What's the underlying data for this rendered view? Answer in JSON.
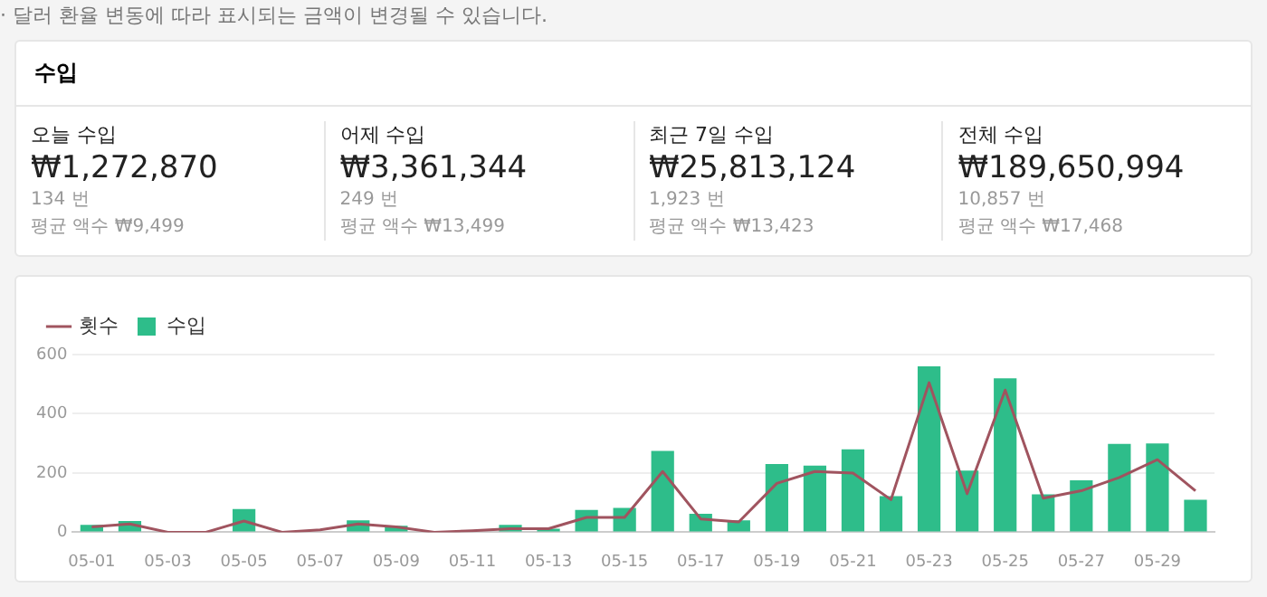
{
  "chart_data": [
    {
      "type": "other",
      "subtitle": "· 달러 환율 변동에 따라 표시되는 금액이 변경될 수 있습니다.",
      "title": "수입",
      "annotations": [
        "오늘 수입",
        "₩1,272,870",
        "134 번",
        "평균 액수 ₩9,499",
        "어제 수입",
        "₩3,361,344",
        "249 번",
        "평균 액수 ₩13,499",
        "최근 7일 수입",
        "₩25,813,124",
        "1,923 번",
        "평균 액수 ₩13,423",
        "전체 수입",
        "₩189,650,994",
        "10,857 번",
        "평균 액수 ₩17,468"
      ]
    },
    {
      "type": "bar",
      "categories": [
        "05-01",
        null,
        "05-03",
        null,
        "05-05",
        null,
        "05-07",
        null,
        "05-09",
        null,
        "05-11",
        null,
        "05-13",
        null,
        "05-15",
        null,
        "05-17",
        null,
        "05-19",
        null,
        "05-21",
        null,
        "05-23",
        null,
        "05-25",
        null,
        "05-27",
        null,
        "05-29",
        null
      ],
      "series": [
        {
          "name": "횟수",
          "type": "line",
          "color": "#a0545f",
          "values": [
            18,
            28,
            0,
            0,
            38,
            0,
            8,
            28,
            18,
            0,
            5,
            12,
            12,
            50,
            50,
            205,
            45,
            35,
            165,
            205,
            200,
            110,
            505,
            130,
            480,
            115,
            140,
            185,
            245,
            140
          ]
        },
        {
          "name": "수입",
          "type": "bar",
          "color": "#2ebd8a",
          "values": [
            25,
            38,
            0,
            0,
            78,
            0,
            null,
            40,
            22,
            0,
            null,
            25,
            12,
            75,
            82,
            275,
            62,
            40,
            230,
            225,
            280,
            122,
            560,
            208,
            520,
            128,
            175,
            298,
            300,
            110
          ]
        }
      ],
      "ylim": [
        0,
        600
      ],
      "yticks": [
        0,
        200,
        400,
        600
      ],
      "grid": "y",
      "legend": "top left"
    }
  ]
}
